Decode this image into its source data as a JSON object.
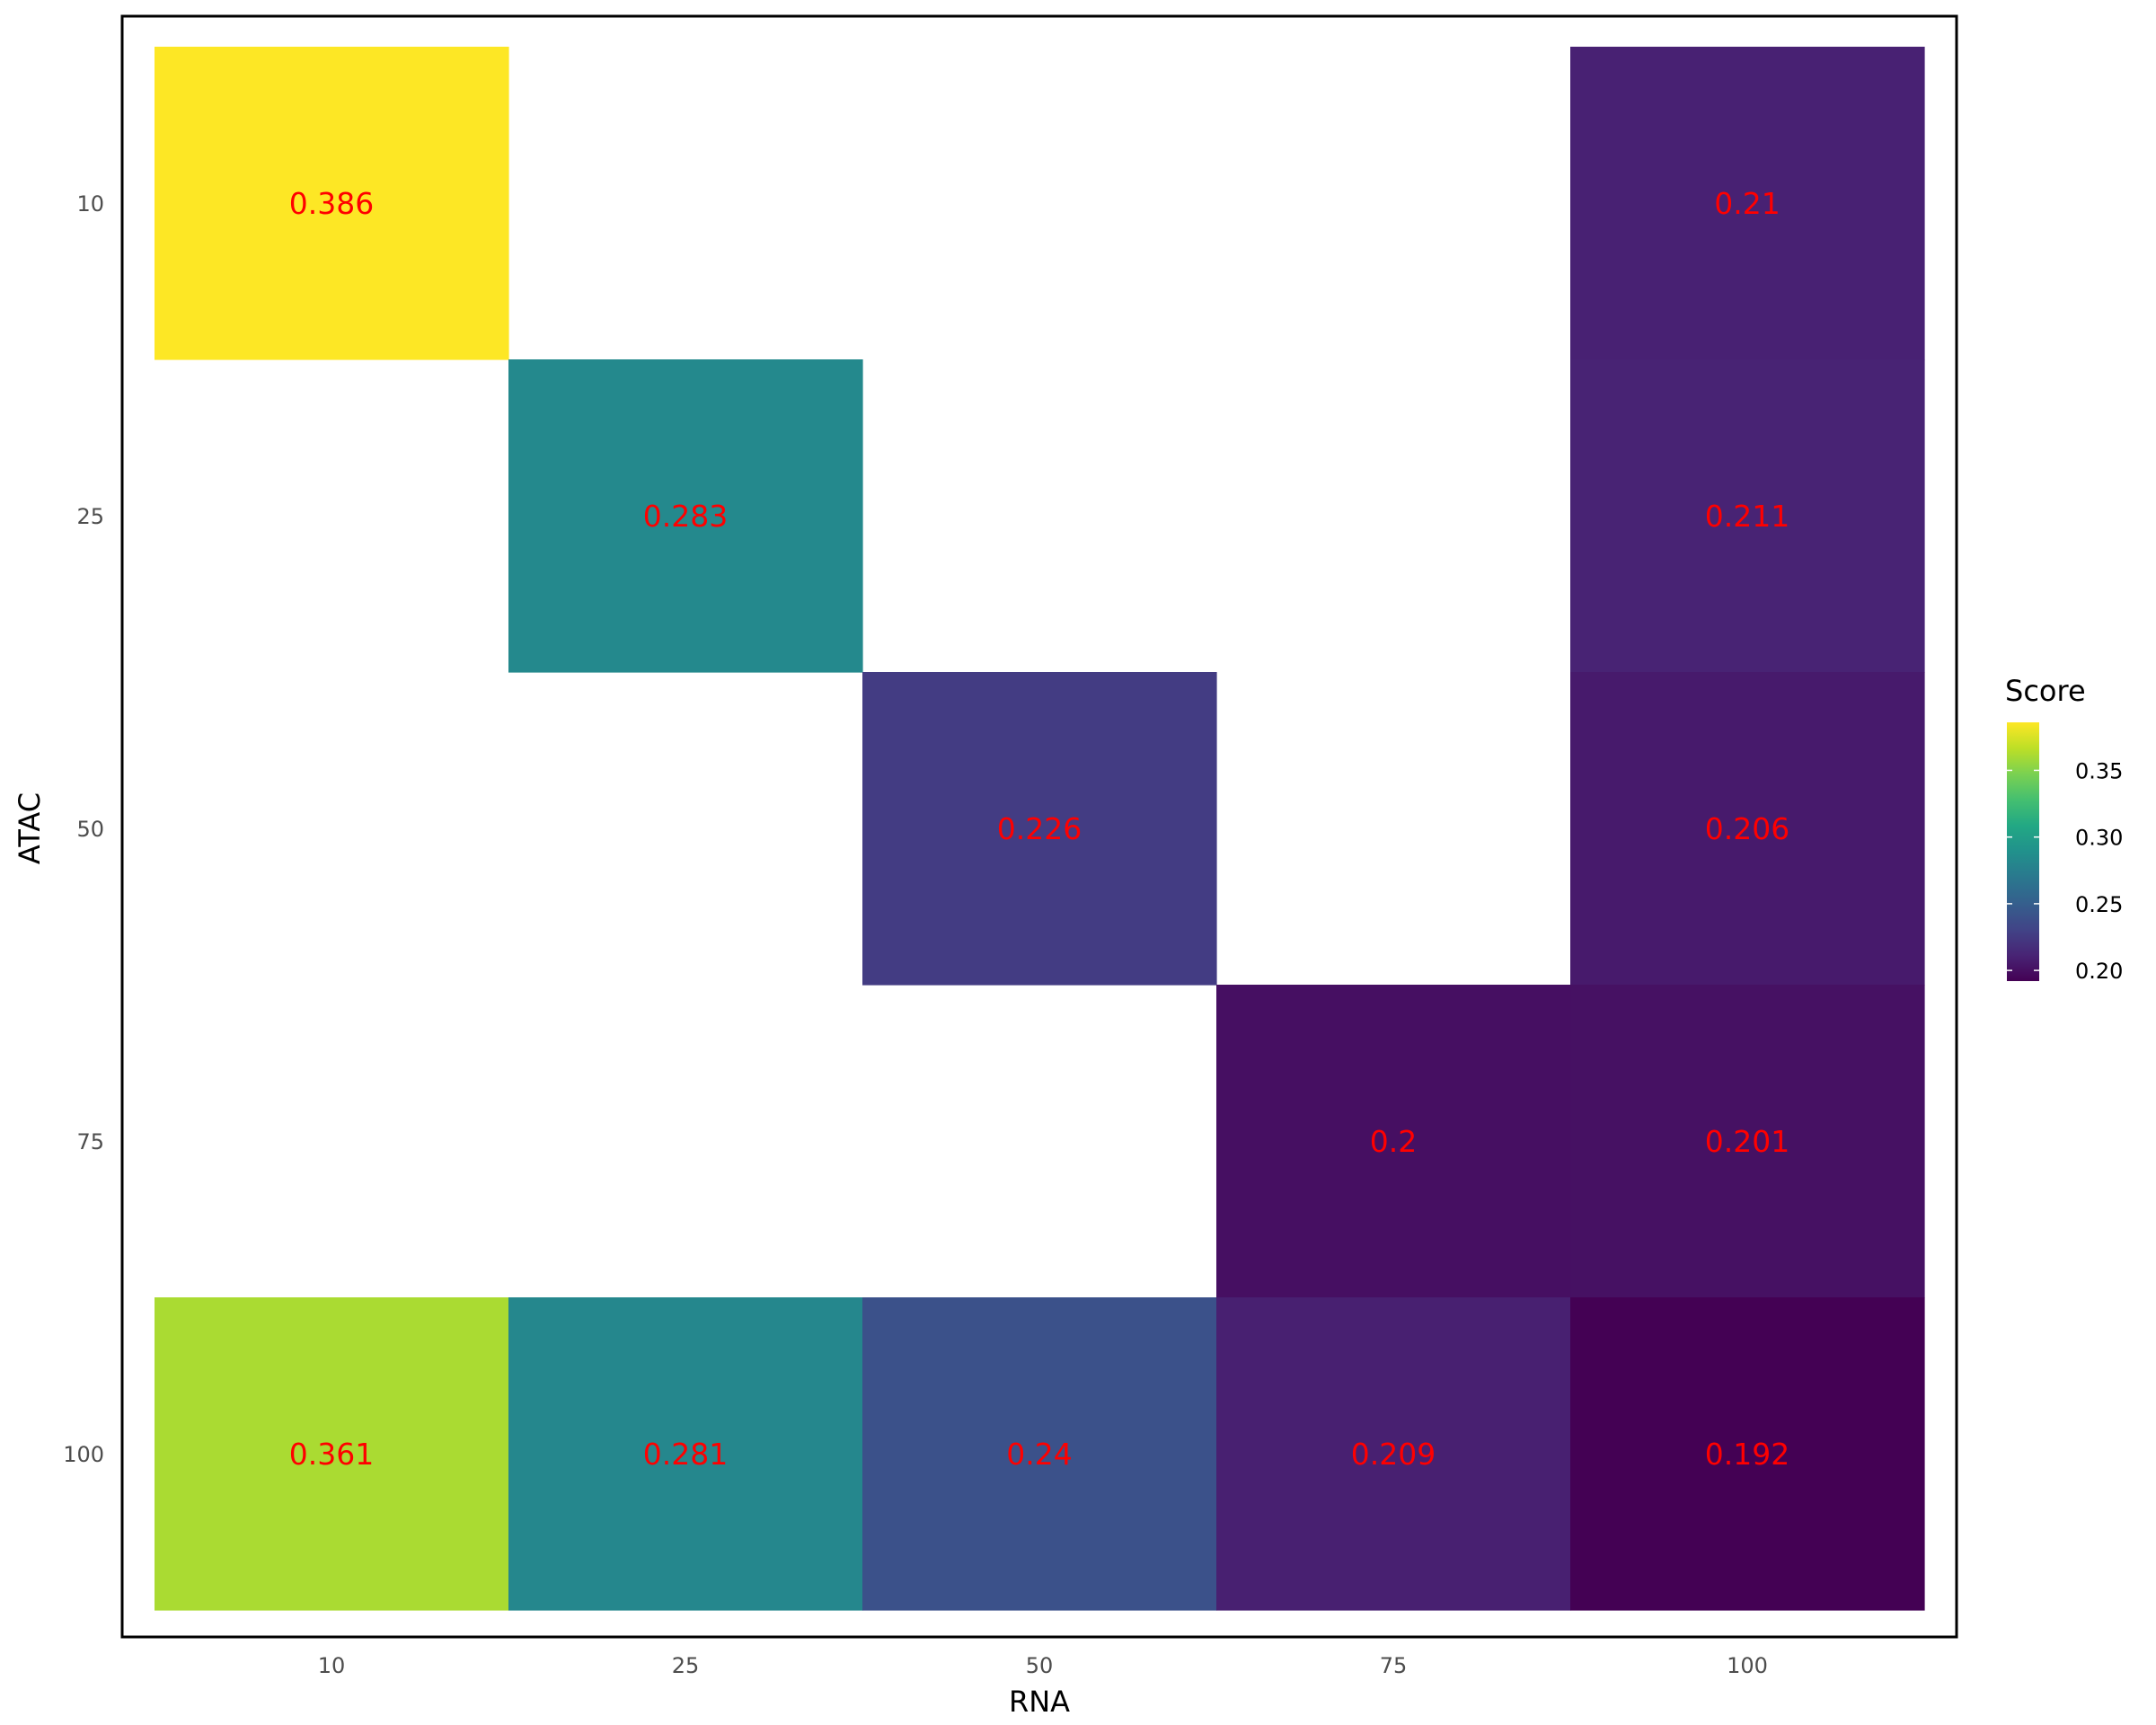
{
  "chart_data": {
    "type": "heatmap",
    "title": "",
    "xlabel": "RNA",
    "ylabel": "ATAC",
    "x_categories": [
      "10",
      "25",
      "50",
      "75",
      "100"
    ],
    "y_categories": [
      "10",
      "25",
      "50",
      "75",
      "100"
    ],
    "cells": [
      {
        "x": "10",
        "y": "10",
        "value": 0.386,
        "label": "0.386"
      },
      {
        "x": "100",
        "y": "10",
        "value": 0.21,
        "label": "0.21"
      },
      {
        "x": "25",
        "y": "25",
        "value": 0.283,
        "label": "0.283"
      },
      {
        "x": "100",
        "y": "25",
        "value": 0.211,
        "label": "0.211"
      },
      {
        "x": "50",
        "y": "50",
        "value": 0.226,
        "label": "0.226"
      },
      {
        "x": "100",
        "y": "50",
        "value": 0.206,
        "label": "0.206"
      },
      {
        "x": "75",
        "y": "75",
        "value": 0.2,
        "label": "0.2"
      },
      {
        "x": "100",
        "y": "75",
        "value": 0.201,
        "label": "0.201"
      },
      {
        "x": "10",
        "y": "100",
        "value": 0.361,
        "label": "0.361"
      },
      {
        "x": "25",
        "y": "100",
        "value": 0.281,
        "label": "0.281"
      },
      {
        "x": "50",
        "y": "100",
        "value": 0.24,
        "label": "0.24"
      },
      {
        "x": "75",
        "y": "100",
        "value": 0.209,
        "label": "0.209"
      },
      {
        "x": "100",
        "y": "100",
        "value": 0.192,
        "label": "0.192"
      }
    ],
    "value_label_color": "#ff0000",
    "colorscale": "viridis",
    "value_range": [
      0.192,
      0.386
    ],
    "legend": {
      "title": "Score",
      "ticks": [
        0.2,
        0.25,
        0.3,
        0.35
      ],
      "tick_labels": [
        "0.20",
        "0.25",
        "0.30",
        "0.35"
      ],
      "placement": "right"
    },
    "grid": false,
    "panel_border": true
  }
}
